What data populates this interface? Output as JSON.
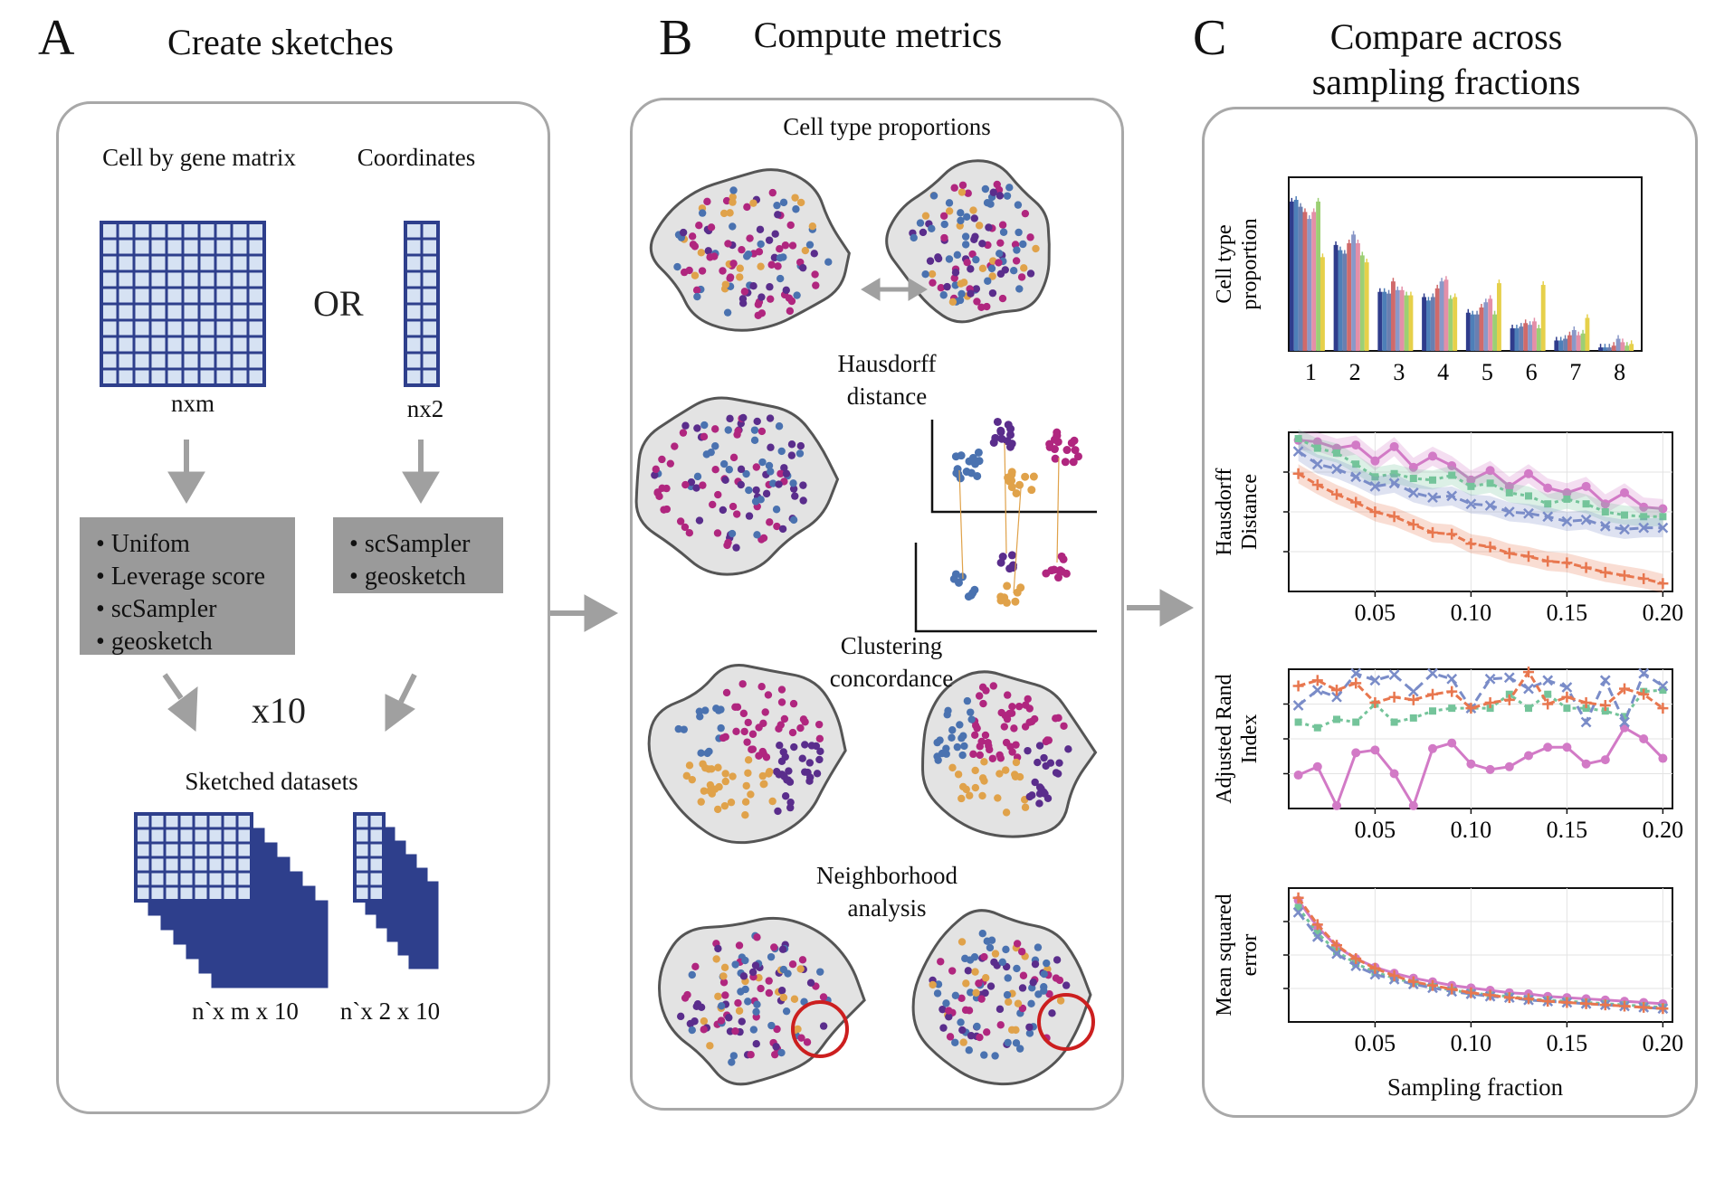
{
  "panelA": {
    "letter": "A",
    "title": "Create sketches",
    "cell_by_gene_label": "Cell by gene matrix",
    "coordinates_label": "Coordinates",
    "or_label": "OR",
    "nxm_label": "nxm",
    "nx2_label": "nx2",
    "methods_left": [
      "Unifom",
      "Leverage score",
      "scSampler",
      "geosketch"
    ],
    "methods_right": [
      "scSampler",
      "geosketch"
    ],
    "x10_label": "x10",
    "sketched_label": "Sketched datasets",
    "out_left_label": "n`x m x 10",
    "out_right_label": "n`x 2 x 10"
  },
  "panelB": {
    "letter": "B",
    "title": "Compute metrics",
    "metric1": "Cell type proportions",
    "metric2": "Hausdorff distance",
    "metric3": "Clustering concordance",
    "metric4": "Neighborhood analysis"
  },
  "panelC": {
    "letter": "C",
    "title": "Compare across sampling fractions",
    "xlabel": "Sampling fraction"
  },
  "colors": {
    "matrix_fill": "#d6e2f3",
    "matrix_stroke": "#2e3f8c",
    "purple": "#5a2d8c",
    "magenta": "#b0267f",
    "blue": "#4a72b0",
    "orange": "#e0a24a",
    "red_circle": "#cc1f1f",
    "pink_series": "#d27ac6",
    "green_series": "#74c49a",
    "blue_series": "#7a8cc8",
    "orange_series": "#e8774f"
  },
  "chart_data": [
    {
      "type": "bar",
      "ylabel": "Cell type proportion",
      "categories": [
        "1",
        "2",
        "3",
        "4",
        "5",
        "6",
        "7",
        "8"
      ],
      "series_colors": [
        "#2f3c8c",
        "#4e7fb8",
        "#6a7fb0",
        "#d06a6a",
        "#8a98c8",
        "#e48fa8",
        "#9ccf74",
        "#e6d04a"
      ],
      "series": [
        {
          "values": [
            0.86,
            0.61,
            0.34,
            0.31,
            0.22,
            0.13,
            0.06,
            0.02
          ]
        },
        {
          "values": [
            0.87,
            0.58,
            0.34,
            0.29,
            0.21,
            0.13,
            0.06,
            0.02
          ]
        },
        {
          "values": [
            0.83,
            0.56,
            0.33,
            0.31,
            0.21,
            0.14,
            0.07,
            0.02
          ]
        },
        {
          "values": [
            0.8,
            0.62,
            0.4,
            0.36,
            0.25,
            0.16,
            0.09,
            0.03
          ]
        },
        {
          "values": [
            0.76,
            0.67,
            0.35,
            0.4,
            0.28,
            0.15,
            0.12,
            0.07
          ]
        },
        {
          "values": [
            0.8,
            0.62,
            0.35,
            0.41,
            0.3,
            0.17,
            0.09,
            0.05
          ]
        },
        {
          "values": [
            0.86,
            0.55,
            0.32,
            0.3,
            0.21,
            0.13,
            0.1,
            0.03
          ]
        },
        {
          "values": [
            0.54,
            0.51,
            0.32,
            0.31,
            0.39,
            0.38,
            0.19,
            0.04
          ]
        }
      ],
      "ylim": [
        0,
        1
      ]
    },
    {
      "type": "line",
      "ylabel": "Hausdorff Distance",
      "x": [
        0.01,
        0.02,
        0.03,
        0.04,
        0.05,
        0.06,
        0.07,
        0.08,
        0.09,
        0.1,
        0.11,
        0.12,
        0.13,
        0.14,
        0.15,
        0.16,
        0.17,
        0.18,
        0.19,
        0.2
      ],
      "xticks": [
        "0.05",
        "0.10",
        "0.15",
        "0.20"
      ],
      "series": [
        {
          "marker": "circle",
          "values": [
            0.95,
            0.94,
            0.9,
            0.92,
            0.82,
            0.91,
            0.78,
            0.85,
            0.79,
            0.7,
            0.76,
            0.66,
            0.74,
            0.65,
            0.62,
            0.66,
            0.55,
            0.62,
            0.53,
            0.52
          ]
        },
        {
          "marker": "square",
          "values": [
            0.96,
            0.9,
            0.87,
            0.8,
            0.72,
            0.74,
            0.71,
            0.7,
            0.73,
            0.66,
            0.68,
            0.62,
            0.6,
            0.55,
            0.58,
            0.55,
            0.5,
            0.48,
            0.47,
            0.47
          ]
        },
        {
          "marker": "x",
          "values": [
            0.88,
            0.8,
            0.77,
            0.72,
            0.66,
            0.68,
            0.62,
            0.59,
            0.6,
            0.55,
            0.54,
            0.5,
            0.49,
            0.47,
            0.44,
            0.45,
            0.41,
            0.39,
            0.4,
            0.4
          ]
        },
        {
          "marker": "plus",
          "values": [
            0.74,
            0.67,
            0.61,
            0.56,
            0.5,
            0.47,
            0.42,
            0.37,
            0.36,
            0.3,
            0.28,
            0.24,
            0.22,
            0.19,
            0.18,
            0.15,
            0.12,
            0.1,
            0.08,
            0.05
          ]
        }
      ],
      "ylim": [
        0,
        1
      ]
    },
    {
      "type": "line",
      "ylabel": "Adjusted Rand Index",
      "x": [
        0.01,
        0.02,
        0.03,
        0.04,
        0.05,
        0.06,
        0.07,
        0.08,
        0.09,
        0.1,
        0.11,
        0.12,
        0.13,
        0.14,
        0.15,
        0.16,
        0.17,
        0.18,
        0.19,
        0.2
      ],
      "xticks": [
        "0.05",
        "0.10",
        "0.15",
        "0.20"
      ],
      "series": [
        {
          "marker": "circle",
          "values": [
            0.24,
            0.3,
            0.02,
            0.4,
            0.42,
            0.25,
            0.02,
            0.43,
            0.47,
            0.32,
            0.28,
            0.3,
            0.38,
            0.44,
            0.44,
            0.32,
            0.35,
            0.58,
            0.5,
            0.36
          ]
        },
        {
          "marker": "square",
          "values": [
            0.62,
            0.58,
            0.64,
            0.62,
            0.75,
            0.62,
            0.65,
            0.7,
            0.72,
            0.72,
            0.72,
            0.82,
            0.72,
            0.82,
            0.72,
            0.72,
            0.7,
            0.66,
            0.84,
            0.85
          ]
        },
        {
          "marker": "x",
          "values": [
            0.74,
            0.85,
            0.8,
            0.97,
            0.92,
            0.96,
            0.84,
            0.97,
            0.93,
            0.72,
            0.93,
            0.94,
            0.86,
            0.92,
            0.87,
            0.62,
            0.92,
            0.62,
            0.97,
            0.88
          ]
        },
        {
          "marker": "plus",
          "values": [
            0.88,
            0.92,
            0.85,
            0.9,
            0.76,
            0.8,
            0.78,
            0.82,
            0.84,
            0.72,
            0.76,
            0.78,
            0.98,
            0.75,
            0.8,
            0.76,
            0.74,
            0.86,
            0.82,
            0.72
          ]
        }
      ],
      "ylim": [
        0,
        1
      ]
    },
    {
      "type": "line",
      "ylabel": "Mean squared error",
      "xlabel": "Sampling fraction",
      "x": [
        0.01,
        0.02,
        0.03,
        0.04,
        0.05,
        0.06,
        0.07,
        0.08,
        0.09,
        0.1,
        0.11,
        0.12,
        0.13,
        0.14,
        0.15,
        0.16,
        0.17,
        0.18,
        0.19,
        0.2
      ],
      "xticks": [
        "0.05",
        "0.10",
        "0.15",
        "0.20"
      ],
      "series": [
        {
          "marker": "circle",
          "values": [
            1.0,
            0.78,
            0.62,
            0.52,
            0.45,
            0.4,
            0.36,
            0.33,
            0.3,
            0.28,
            0.26,
            0.24,
            0.23,
            0.21,
            0.2,
            0.19,
            0.18,
            0.17,
            0.16,
            0.15
          ]
        },
        {
          "marker": "square",
          "values": [
            0.94,
            0.73,
            0.58,
            0.48,
            0.41,
            0.36,
            0.32,
            0.29,
            0.26,
            0.24,
            0.22,
            0.21,
            0.19,
            0.18,
            0.17,
            0.16,
            0.15,
            0.14,
            0.13,
            0.12
          ]
        },
        {
          "marker": "x",
          "values": [
            0.9,
            0.7,
            0.56,
            0.46,
            0.39,
            0.35,
            0.31,
            0.28,
            0.25,
            0.23,
            0.21,
            0.2,
            0.18,
            0.17,
            0.16,
            0.15,
            0.14,
            0.13,
            0.12,
            0.11
          ]
        },
        {
          "marker": "plus",
          "values": [
            1.02,
            0.8,
            0.63,
            0.52,
            0.44,
            0.38,
            0.33,
            0.3,
            0.27,
            0.24,
            0.22,
            0.2,
            0.19,
            0.17,
            0.16,
            0.15,
            0.14,
            0.13,
            0.12,
            0.11
          ]
        }
      ],
      "ylim": [
        0,
        1.1
      ]
    }
  ]
}
